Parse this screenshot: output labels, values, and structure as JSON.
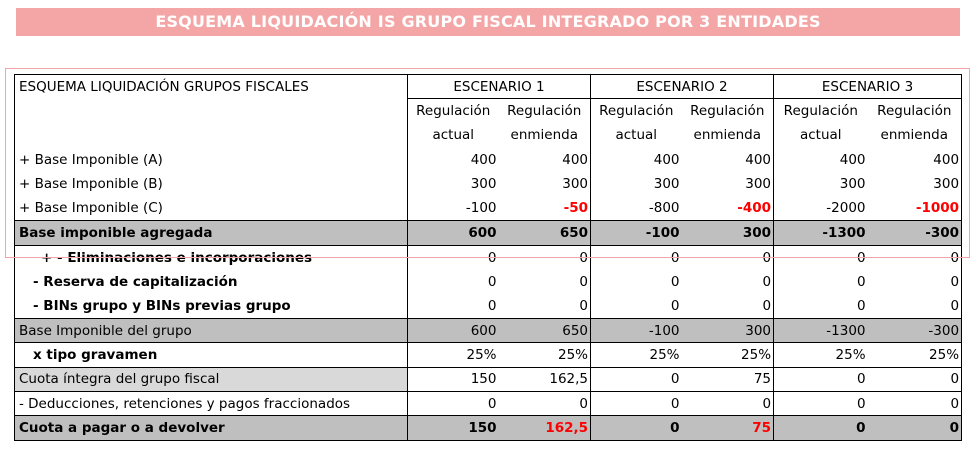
{
  "banner_title": "ESQUEMA LIQUIDACIÓN IS GRUPO FISCAL INTEGRADO POR 3 ENTIDADES",
  "table": {
    "title": "ESQUEMA LIQUIDACIÓN GRUPOS FISCALES",
    "scenarios": [
      "ESCENARIO 1",
      "ESCENARIO 2",
      "ESCENARIO 3"
    ],
    "sub_a": [
      "Regulación",
      "Regulación",
      "Regulación",
      "Regulación",
      "Regulación",
      "Regulación"
    ],
    "sub_b": [
      "actual",
      "enmienda",
      "actual",
      "enmienda",
      "actual",
      "enmienda"
    ],
    "rows": [
      {
        "label": "+ Base Imponible (A)",
        "values": [
          "400",
          "400",
          "400",
          "400",
          "400",
          "400"
        ]
      },
      {
        "label": "+ Base Imponible (B)",
        "values": [
          "300",
          "300",
          "300",
          "300",
          "300",
          "300"
        ]
      },
      {
        "label": "+ Base Imponible (C)",
        "values": [
          "-100",
          "-50",
          "-800",
          "-400",
          "-2000",
          "-1000"
        ]
      },
      {
        "label": "Base imponible agregada",
        "values": [
          "600",
          "650",
          "-100",
          "300",
          "-1300",
          "-300"
        ]
      },
      {
        "label": "+ - Eliminaciones e incorporaciones",
        "values": [
          "0",
          "0",
          "0",
          "0",
          "0",
          "0"
        ]
      },
      {
        "label": "- Reserva de capitalización",
        "values": [
          "0",
          "0",
          "0",
          "0",
          "0",
          "0"
        ]
      },
      {
        "label": "- BINs grupo y BINs previas grupo",
        "values": [
          "0",
          "0",
          "0",
          "0",
          "0",
          "0"
        ]
      },
      {
        "label": "Base Imponible del grupo",
        "values": [
          "600",
          "650",
          "-100",
          "300",
          "-1300",
          "-300"
        ]
      },
      {
        "label": "x  tipo gravamen",
        "values": [
          "25%",
          "25%",
          "25%",
          "25%",
          "25%",
          "25%"
        ]
      },
      {
        "label": "Cuota íntegra del grupo fiscal",
        "values": [
          "150",
          "162,5",
          "0",
          "75",
          "0",
          "0"
        ]
      },
      {
        "label": "- Deducciones, retenciones y pagos fraccionados",
        "values": [
          "0",
          "0",
          "0",
          "0",
          "0",
          "0"
        ]
      },
      {
        "label": "Cuota a pagar o a devolver",
        "values": [
          "150",
          "162,5",
          "0",
          "75",
          "0",
          "0"
        ]
      }
    ]
  },
  "colors": {
    "banner": "#f4a5a5",
    "grey": "#bfbfbf",
    "highlight": "#ff0000",
    "frame": "#f0a6a6"
  }
}
